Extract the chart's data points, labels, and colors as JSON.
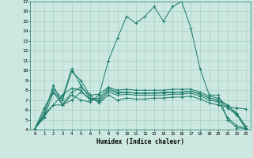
{
  "xlabel": "Humidex (Indice chaleur)",
  "bg_color": "#cce8e0",
  "line_color": "#1a7a6a",
  "grid_color": "#99ccc0",
  "xlim": [
    -0.5,
    23.5
  ],
  "ylim": [
    4,
    17
  ],
  "xticks": [
    0,
    1,
    2,
    3,
    4,
    5,
    6,
    7,
    8,
    9,
    10,
    11,
    12,
    13,
    14,
    15,
    16,
    17,
    18,
    19,
    20,
    21,
    22,
    23
  ],
  "yticks": [
    4,
    5,
    6,
    7,
    8,
    9,
    10,
    11,
    12,
    13,
    14,
    15,
    16,
    17
  ],
  "series": [
    [
      4.1,
      5.5,
      8.5,
      6.5,
      7.5,
      7.0,
      6.8,
      7.5,
      11.0,
      13.3,
      15.5,
      14.8,
      15.5,
      16.5,
      15.0,
      16.5,
      17.0,
      14.3,
      10.2,
      7.5,
      7.5,
      5.0,
      4.2,
      4.1
    ],
    [
      4.1,
      6.2,
      7.8,
      7.0,
      9.9,
      9.0,
      7.5,
      6.7,
      7.5,
      7.0,
      7.2,
      7.1,
      7.1,
      7.2,
      7.2,
      7.3,
      7.3,
      7.4,
      7.1,
      6.7,
      6.5,
      6.3,
      6.2,
      6.1
    ],
    [
      4.1,
      5.8,
      8.1,
      7.2,
      10.2,
      8.5,
      7.2,
      7.0,
      8.0,
      7.7,
      7.8,
      7.7,
      7.7,
      7.7,
      7.7,
      7.8,
      7.8,
      7.9,
      7.6,
      7.2,
      7.0,
      6.5,
      5.5,
      4.1
    ],
    [
      4.1,
      5.2,
      7.8,
      6.5,
      7.8,
      8.3,
      7.5,
      7.6,
      8.3,
      8.0,
      8.1,
      8.0,
      8.0,
      8.0,
      8.0,
      8.1,
      8.1,
      8.1,
      7.8,
      7.4,
      7.2,
      6.4,
      5.7,
      4.3
    ],
    [
      4.1,
      5.3,
      6.5,
      7.5,
      8.2,
      8.0,
      7.0,
      7.2,
      8.2,
      7.8,
      7.8,
      7.7,
      7.7,
      7.7,
      7.8,
      7.8,
      7.8,
      7.9,
      7.6,
      7.2,
      7.0,
      6.2,
      5.5,
      4.2
    ],
    [
      4.1,
      5.5,
      6.5,
      6.5,
      7.0,
      7.8,
      7.2,
      6.8,
      7.8,
      7.5,
      7.6,
      7.5,
      7.5,
      7.5,
      7.5,
      7.6,
      7.6,
      7.7,
      7.4,
      7.0,
      6.8,
      5.2,
      4.4,
      4.1
    ]
  ]
}
